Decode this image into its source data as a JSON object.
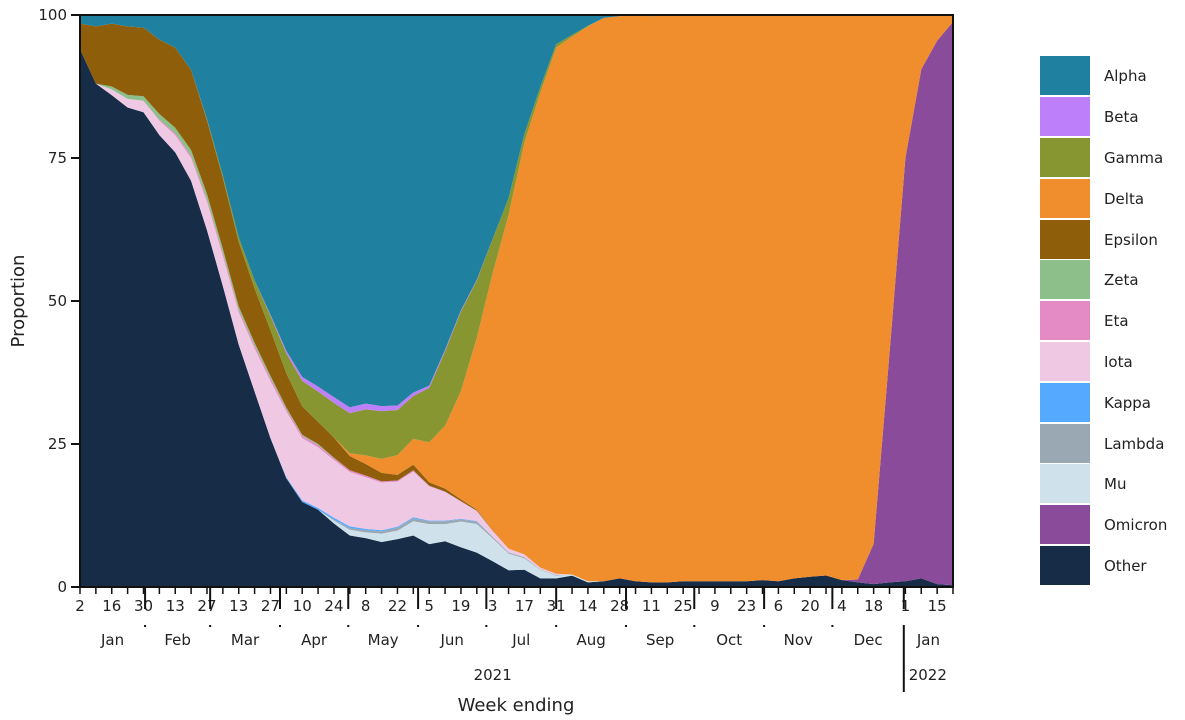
{
  "chart_data": {
    "type": "area",
    "stacked": true,
    "normalized": true,
    "title": "",
    "xlabel": "Week ending",
    "ylabel": "Proportion",
    "ylim": [
      0,
      100
    ],
    "yticks": [
      0,
      25,
      50,
      75,
      100
    ],
    "year_labels": [
      {
        "label": "2021",
        "anchor_week": 26
      },
      {
        "label": "2022",
        "anchor_week": 53.5
      }
    ],
    "week_tick_labels": [
      "2",
      "16",
      "30",
      "13",
      "27",
      "13",
      "27",
      "10",
      "24",
      "8",
      "22",
      "5",
      "19",
      "3",
      "17",
      "31",
      "14",
      "28",
      "11",
      "25",
      "9",
      "23",
      "6",
      "20",
      "4",
      "18",
      "1",
      "15"
    ],
    "week_tick_weeks": [
      0,
      2,
      4,
      6,
      8,
      10,
      12,
      14,
      16,
      18,
      20,
      22,
      24,
      26,
      28,
      30,
      32,
      34,
      36,
      38,
      40,
      42,
      44,
      46,
      48,
      50,
      52,
      54
    ],
    "months": [
      {
        "label": "Jan",
        "start": 0,
        "end": 4.1
      },
      {
        "label": "Feb",
        "start": 4.1,
        "end": 8.2
      },
      {
        "label": "Mar",
        "start": 8.2,
        "end": 12.6
      },
      {
        "label": "Apr",
        "start": 12.6,
        "end": 16.9
      },
      {
        "label": "May",
        "start": 16.9,
        "end": 21.3
      },
      {
        "label": "Jun",
        "start": 21.3,
        "end": 25.6
      },
      {
        "label": "Jul",
        "start": 25.6,
        "end": 30
      },
      {
        "label": "Aug",
        "start": 30,
        "end": 34.4
      },
      {
        "label": "Sep",
        "start": 34.4,
        "end": 38.7
      },
      {
        "label": "Oct",
        "start": 38.7,
        "end": 43.1
      },
      {
        "label": "Nov",
        "start": 43.1,
        "end": 47.4
      },
      {
        "label": "Dec",
        "start": 47.4,
        "end": 51.9
      },
      {
        "label": "Jan",
        "start": 51.9,
        "end": 55
      }
    ],
    "n_weeks": 56,
    "series_order_bottom_to_top": [
      "Other",
      "Mu",
      "Lambda",
      "Kappa",
      "Iota",
      "Eta",
      "Zeta",
      "Omicron",
      "Epsilon",
      "Delta",
      "Gamma",
      "Beta",
      "Alpha"
    ],
    "series": [
      {
        "name": "Other",
        "color": "#172d47",
        "values": [
          94,
          88,
          86,
          84,
          83,
          79,
          76,
          71,
          63,
          55,
          45,
          36,
          26,
          19,
          15,
          14,
          11,
          9,
          8.5,
          8,
          8.5,
          9,
          7.5,
          8,
          7,
          6,
          4.5,
          3,
          3,
          1.5,
          1.5,
          2,
          0.8,
          1,
          1.5,
          1,
          0.8,
          0.8,
          1,
          1,
          1,
          1,
          1,
          1.2,
          1,
          1.5,
          1.8,
          2,
          1.2,
          0.8,
          0.5,
          0.8,
          1,
          1.5,
          0.5,
          0.3
        ]
      },
      {
        "name": "Mu",
        "color": "#cfe2ec",
        "values": [
          0,
          0,
          0,
          0,
          0,
          0,
          0,
          0,
          0,
          0,
          0,
          0,
          0,
          0,
          0,
          0,
          0.5,
          1,
          1,
          1.5,
          1.5,
          2.5,
          3.5,
          3,
          4.5,
          5,
          4,
          3,
          2,
          1.5,
          0.5,
          0.2,
          0.2,
          0,
          0,
          0,
          0,
          0,
          0,
          0,
          0,
          0,
          0,
          0,
          0,
          0,
          0,
          0,
          0,
          0,
          0,
          0,
          0,
          0,
          0,
          0
        ]
      },
      {
        "name": "Lambda",
        "color": "#9aa8b3",
        "values": [
          0,
          0,
          0,
          0,
          0,
          0,
          0,
          0,
          0,
          0,
          0,
          0,
          0,
          0,
          0,
          0,
          0.2,
          0.3,
          0.4,
          0.4,
          0.5,
          0.5,
          0.5,
          0.5,
          0.4,
          0.4,
          0.3,
          0.2,
          0.2,
          0.1,
          0.1,
          0,
          0,
          0,
          0,
          0,
          0,
          0,
          0,
          0,
          0,
          0,
          0,
          0,
          0,
          0,
          0,
          0,
          0,
          0,
          0,
          0,
          0,
          0,
          0,
          0
        ]
      },
      {
        "name": "Kappa",
        "color": "#55aaff",
        "values": [
          0,
          0,
          0,
          0,
          0,
          0,
          0,
          0,
          0,
          0,
          0,
          0,
          0,
          0.2,
          0.3,
          0.3,
          0.3,
          0.3,
          0.2,
          0.2,
          0.2,
          0.2,
          0.1,
          0.1,
          0.1,
          0.1,
          0,
          0,
          0,
          0,
          0,
          0,
          0,
          0,
          0,
          0,
          0,
          0,
          0,
          0,
          0,
          0,
          0,
          0,
          0,
          0,
          0,
          0,
          0,
          0,
          0,
          0,
          0,
          0,
          0,
          0
        ]
      },
      {
        "name": "Iota",
        "color": "#efc8e3",
        "values": [
          0,
          0,
          1,
          1.5,
          2,
          2.5,
          3,
          4,
          5,
          5.5,
          6,
          8,
          10,
          11.5,
          11,
          11,
          10,
          9.5,
          9,
          8.5,
          8,
          8,
          6,
          5,
          3,
          1.8,
          1,
          0.7,
          0.5,
          0.3,
          0.2,
          0,
          0,
          0,
          0,
          0,
          0,
          0,
          0,
          0,
          0,
          0,
          0,
          0,
          0,
          0,
          0,
          0,
          0,
          0,
          0,
          0,
          0,
          0,
          0,
          0
        ]
      },
      {
        "name": "Eta",
        "color": "#e48bc5",
        "values": [
          0,
          0,
          0,
          0,
          0,
          0.2,
          0.3,
          0.4,
          0.4,
          0.5,
          0.5,
          0.5,
          0.5,
          0.4,
          0.4,
          0.4,
          0.3,
          0.3,
          0.3,
          0.2,
          0.2,
          0.2,
          0.1,
          0.1,
          0.1,
          0,
          0,
          0,
          0,
          0,
          0,
          0,
          0,
          0,
          0,
          0,
          0,
          0,
          0,
          0,
          0,
          0,
          0,
          0,
          0,
          0,
          0,
          0,
          0,
          0,
          0,
          0,
          0,
          0,
          0,
          0
        ]
      },
      {
        "name": "Zeta",
        "color": "#8dbf8b",
        "values": [
          0,
          0,
          0.5,
          0.7,
          0.8,
          1,
          1,
          1,
          1,
          0.8,
          0.6,
          0.5,
          0.4,
          0.3,
          0.2,
          0.2,
          0.1,
          0,
          0,
          0,
          0,
          0,
          0,
          0,
          0,
          0,
          0,
          0,
          0,
          0,
          0,
          0,
          0,
          0,
          0,
          0,
          0,
          0,
          0,
          0,
          0,
          0,
          0,
          0,
          0,
          0,
          0,
          0,
          0,
          0,
          0,
          0,
          0,
          0,
          0,
          0
        ]
      },
      {
        "name": "Omicron",
        "color": "#8a4b9a",
        "values": [
          0,
          0,
          0,
          0,
          0,
          0,
          0,
          0,
          0,
          0,
          0,
          0,
          0,
          0,
          0,
          0,
          0,
          0,
          0,
          0,
          0,
          0,
          0,
          0,
          0,
          0,
          0,
          0,
          0,
          0,
          0,
          0,
          0,
          0,
          0,
          0,
          0,
          0,
          0,
          0,
          0,
          0,
          0,
          0,
          0,
          0,
          0,
          0,
          0,
          0.5,
          7,
          40,
          74,
          89,
          95,
          98.5
        ]
      },
      {
        "name": "Epsilon",
        "color": "#8f5e0b",
        "values": [
          4.5,
          10,
          11,
          12,
          12,
          13,
          14,
          14,
          13,
          13,
          12,
          10,
          8,
          6,
          5,
          4,
          3.5,
          2.5,
          2,
          1.5,
          1,
          1,
          0.6,
          0.5,
          0.3,
          0.2,
          0.1,
          0,
          0,
          0,
          0,
          0,
          0,
          0,
          0,
          0,
          0,
          0,
          0,
          0,
          0,
          0,
          0,
          0,
          0,
          0,
          0,
          0,
          0,
          0,
          0,
          0,
          0,
          0,
          0,
          0
        ]
      },
      {
        "name": "Delta",
        "color": "#f08d2d",
        "values": [
          0,
          0,
          0,
          0,
          0,
          0,
          0,
          0,
          0,
          0,
          0,
          0,
          0,
          0,
          0,
          0,
          0,
          0.5,
          1.5,
          2.5,
          3.5,
          4.5,
          7,
          11,
          19,
          30,
          45,
          60,
          72,
          83,
          92,
          94.5,
          97,
          98.5,
          98.3,
          98.9,
          99,
          99.1,
          99,
          99,
          99,
          99,
          99,
          98.8,
          99,
          98.5,
          98.2,
          97.5,
          98.2,
          98,
          92,
          59,
          25,
          9.5,
          4.5,
          1.2
        ]
      },
      {
        "name": "Gamma",
        "color": "#879630",
        "values": [
          0,
          0,
          0,
          0,
          0,
          0,
          0,
          0,
          0.2,
          0.4,
          0.8,
          1.5,
          2.5,
          3.5,
          4.5,
          5.5,
          6,
          7,
          8,
          8.5,
          8,
          7.5,
          9.5,
          13,
          14,
          10,
          6,
          3,
          1.5,
          1,
          0.6,
          0.3,
          0.1,
          0,
          0,
          0,
          0,
          0,
          0,
          0,
          0,
          0,
          0,
          0,
          0,
          0,
          0,
          0,
          0,
          0,
          0,
          0,
          0,
          0,
          0,
          0
        ]
      },
      {
        "name": "Beta",
        "color": "#be80fa",
        "values": [
          0,
          0,
          0,
          0,
          0,
          0,
          0,
          0,
          0,
          0,
          0,
          0,
          0.2,
          0.4,
          0.7,
          0.9,
          1,
          1,
          1,
          0.9,
          0.8,
          0.6,
          0.4,
          0.3,
          0.2,
          0.1,
          0,
          0,
          0,
          0,
          0,
          0,
          0,
          0,
          0,
          0,
          0,
          0,
          0,
          0,
          0,
          0,
          0,
          0,
          0,
          0,
          0,
          0,
          0,
          0,
          0,
          0,
          0,
          0,
          0,
          0
        ]
      },
      {
        "name": "Alpha",
        "color": "#1f809f",
        "values": [
          1.5,
          2,
          1.5,
          2,
          2.2,
          4.3,
          5.7,
          9.6,
          18.4,
          29.4,
          41.3,
          48.9,
          52.4,
          58.7,
          63.9,
          67.3,
          66.2,
          68.6,
          67.6,
          69.6,
          69.3,
          66,
          64.8,
          58.5,
          51.9,
          46.2,
          39.1,
          32.9,
          20.8,
          12.6,
          5.1,
          3.5,
          1.9,
          0.5,
          0.2,
          0.1,
          0.2,
          0.1,
          0,
          0,
          0,
          0,
          0,
          0,
          0,
          0,
          0,
          0,
          0,
          0,
          0,
          0,
          0,
          0,
          0,
          0
        ]
      }
    ]
  },
  "legend": {
    "items": [
      {
        "label": "Alpha",
        "color": "#1f809f"
      },
      {
        "label": "Beta",
        "color": "#be80fa"
      },
      {
        "label": "Gamma",
        "color": "#879630"
      },
      {
        "label": "Delta",
        "color": "#f08d2d"
      },
      {
        "label": "Epsilon",
        "color": "#8f5e0b"
      },
      {
        "label": "Zeta",
        "color": "#8dbf8b"
      },
      {
        "label": "Eta",
        "color": "#e48bc5"
      },
      {
        "label": "Iota",
        "color": "#efc8e3"
      },
      {
        "label": "Kappa",
        "color": "#55aaff"
      },
      {
        "label": "Lambda",
        "color": "#9aa8b3"
      },
      {
        "label": "Mu",
        "color": "#cfe2ec"
      },
      {
        "label": "Omicron",
        "color": "#8a4b9a"
      },
      {
        "label": "Other",
        "color": "#172d47"
      }
    ]
  }
}
